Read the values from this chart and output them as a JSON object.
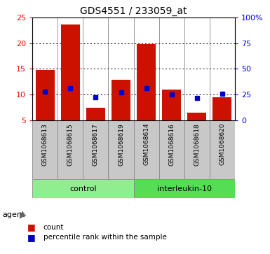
{
  "title": "GDS4551 / 233059_at",
  "samples": [
    "GSM1068613",
    "GSM1068615",
    "GSM1068617",
    "GSM1068619",
    "GSM1068614",
    "GSM1068616",
    "GSM1068618",
    "GSM1068620"
  ],
  "counts": [
    14.8,
    23.7,
    7.4,
    12.9,
    19.8,
    10.9,
    6.4,
    9.5
  ],
  "percentiles": [
    28.0,
    31.5,
    22.5,
    27.0,
    31.5,
    25.0,
    21.5,
    25.5
  ],
  "ymin": 5,
  "ymax": 25,
  "yticks_left": [
    5,
    10,
    15,
    20,
    25
  ],
  "yticks_right": [
    0,
    25,
    50,
    75,
    100
  ],
  "right_labels": [
    "0",
    "25",
    "50",
    "75",
    "100%"
  ],
  "grid_lines": [
    10,
    15,
    20
  ],
  "groups": [
    {
      "label": "control",
      "start": 0,
      "end": 3,
      "color": "#90EE90"
    },
    {
      "label": "interleukin-10",
      "start": 4,
      "end": 7,
      "color": "#55DD55"
    }
  ],
  "bar_color": "#CC1100",
  "marker_color": "#0000CC",
  "bar_width": 0.75,
  "baseline": 5,
  "cell_bg": "#C8C8C8",
  "cell_border": "#888888",
  "plot_bg": "#FFFFFF",
  "legend": [
    {
      "color": "#CC1100",
      "label": "count"
    },
    {
      "color": "#0000CC",
      "label": "percentile rank within the sample"
    }
  ]
}
